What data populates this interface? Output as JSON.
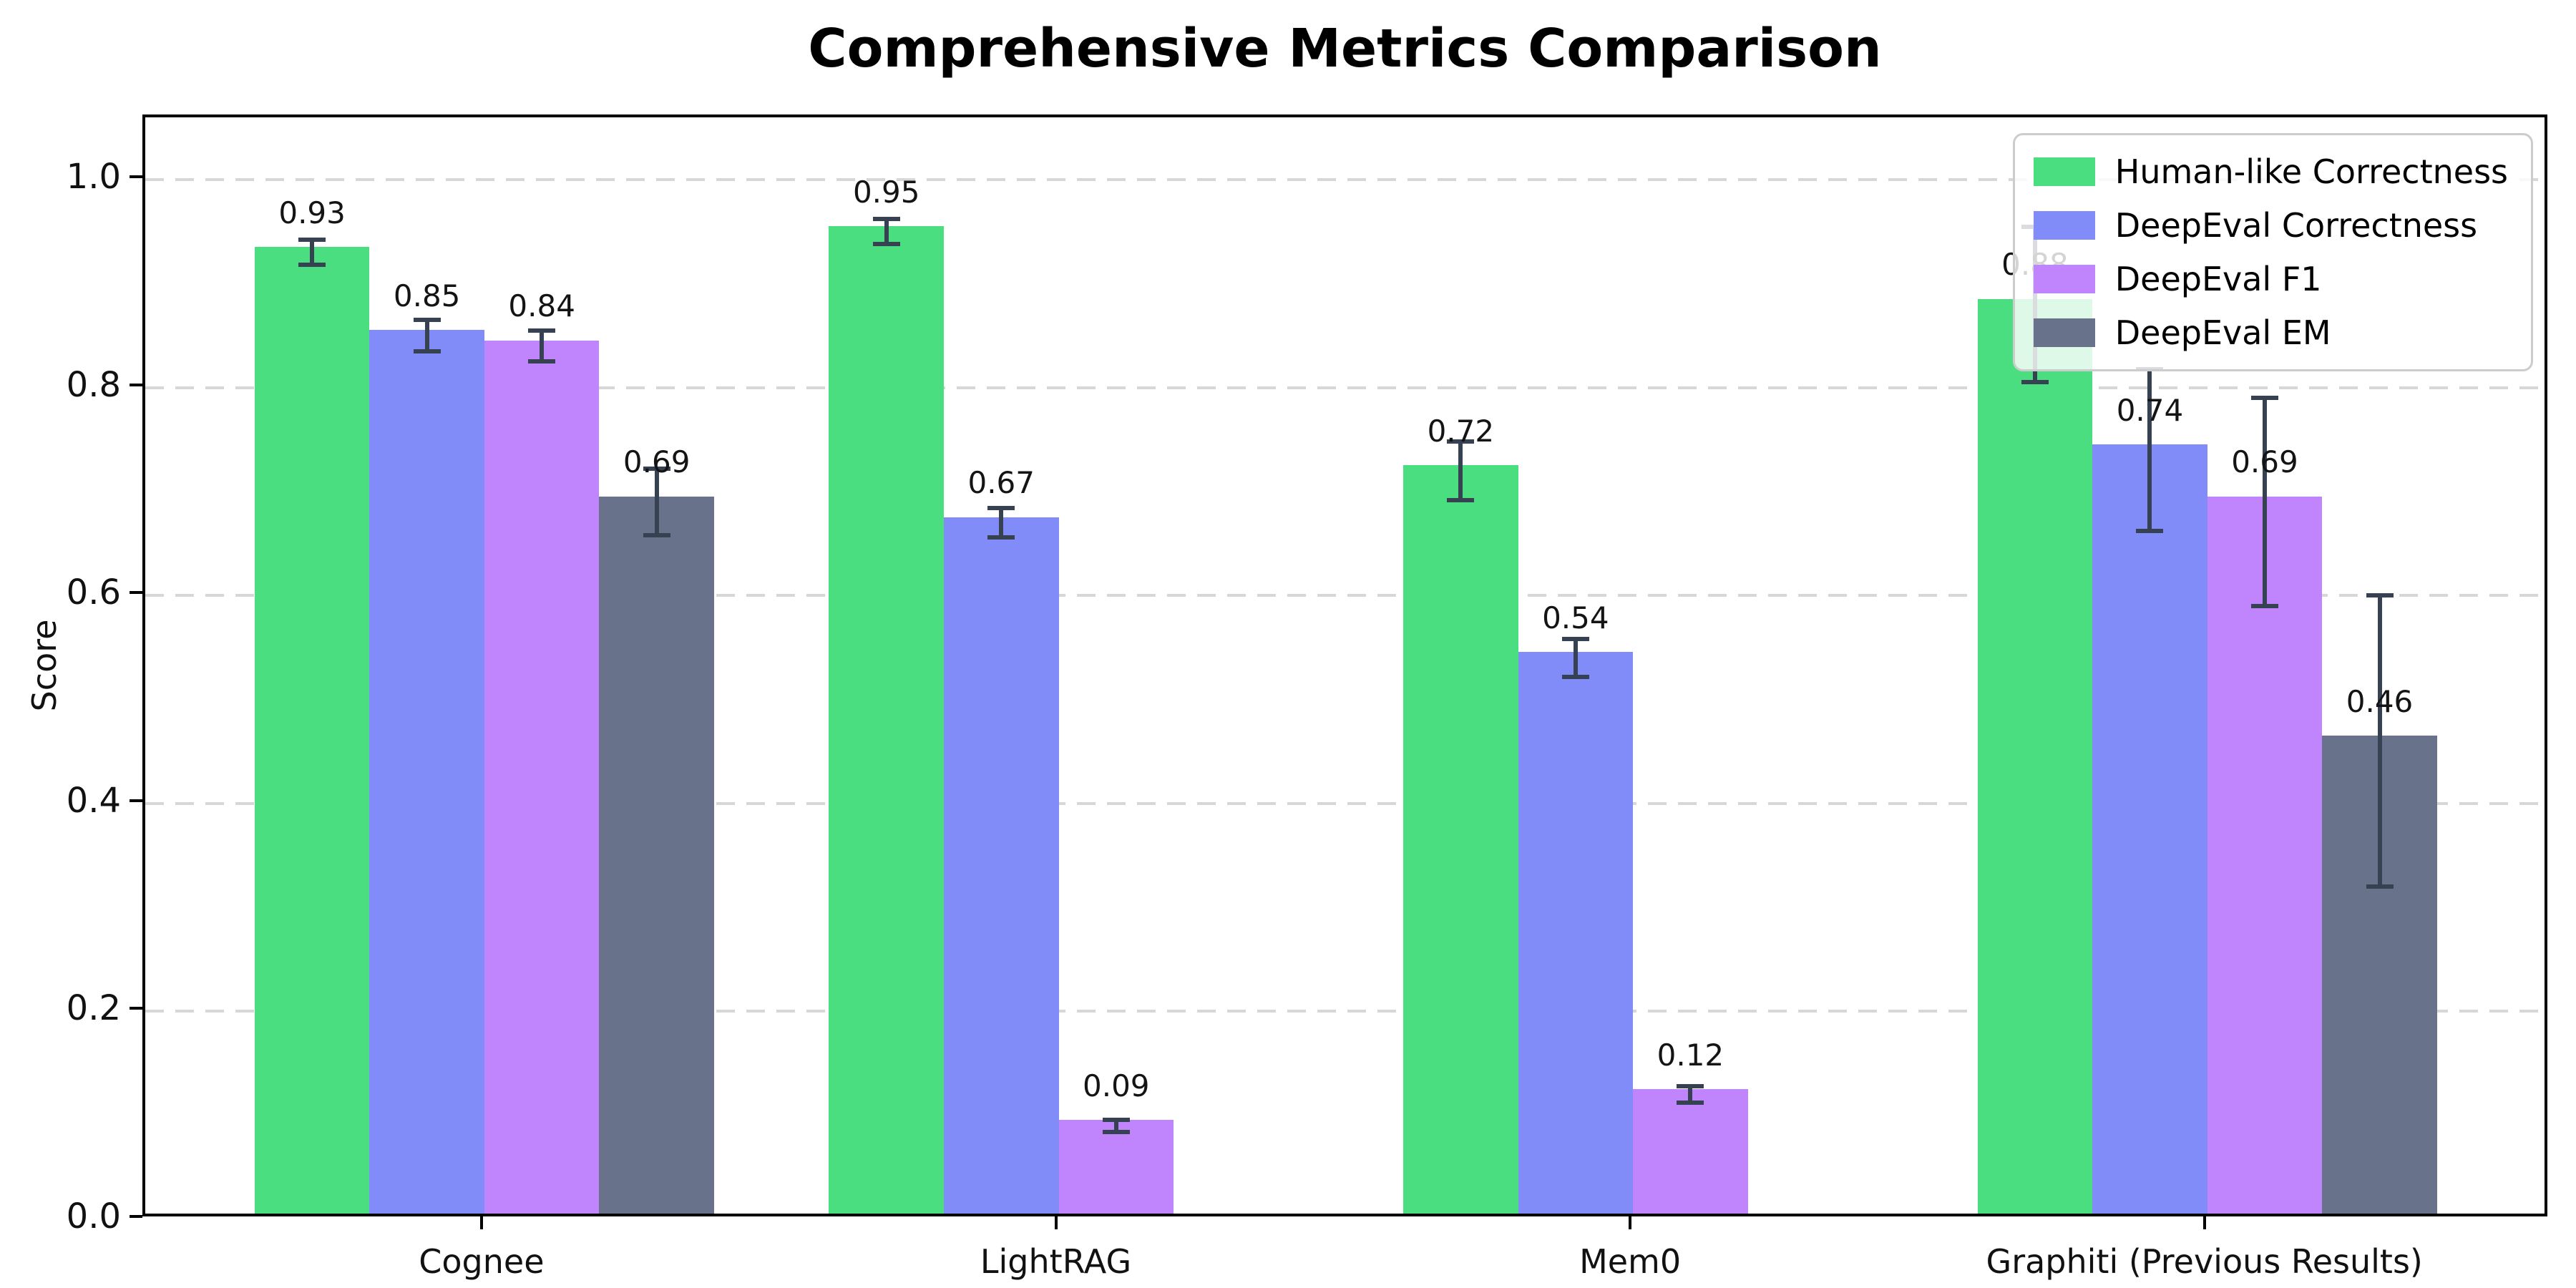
{
  "figure": {
    "title": "Comprehensive Metrics Comparison"
  },
  "chart_data": {
    "type": "bar",
    "title": "Comprehensive Metrics Comparison",
    "xlabel": "",
    "ylabel": "Score",
    "categories": [
      "Cognee",
      "LightRAG",
      "Mem0",
      "Graphiti (Previous Results)"
    ],
    "series": [
      {
        "name": "Human-like Correctness",
        "color": "#4ade80",
        "values": [
          0.93,
          0.95,
          0.72,
          0.88
        ],
        "errors": [
          0.012,
          0.012,
          0.028,
          0.075
        ],
        "data_labels": [
          "0.93",
          "0.95",
          "0.72",
          "0.88"
        ]
      },
      {
        "name": "DeepEval Correctness",
        "color": "#818cf8",
        "values": [
          0.85,
          0.67,
          0.54,
          0.74
        ],
        "errors": [
          0.015,
          0.014,
          0.018,
          0.078
        ],
        "data_labels": [
          "0.85",
          "0.67",
          "0.54",
          "0.74"
        ]
      },
      {
        "name": "DeepEval F1",
        "color": "#c084fc",
        "values": [
          0.84,
          0.09,
          0.12,
          0.69
        ],
        "errors": [
          0.015,
          0.006,
          0.008,
          0.1
        ],
        "data_labels": [
          "0.84",
          "0.09",
          "0.12",
          "0.69"
        ]
      },
      {
        "name": "DeepEval EM",
        "color": "#68728a",
        "values": [
          0.69,
          0.0,
          0.0,
          0.46
        ],
        "errors": [
          0.032,
          0.003,
          0.003,
          0.14
        ],
        "data_labels": [
          "0.69",
          "",
          "",
          "0.46"
        ]
      }
    ],
    "yticks": [
      0.0,
      0.2,
      0.4,
      0.6,
      0.8,
      1.0
    ],
    "ytick_labels": [
      "0.0",
      "0.2",
      "0.4",
      "0.6",
      "0.8",
      "1.0"
    ],
    "ylim": [
      0,
      1.06
    ],
    "grid": {
      "axis": "y",
      "style": "dashed",
      "color": "#d7d7d7"
    },
    "legend_position": "upper right",
    "errorbar_color": "#364152",
    "value_label_offset": 0.018,
    "bar_width_units": 0.2
  }
}
